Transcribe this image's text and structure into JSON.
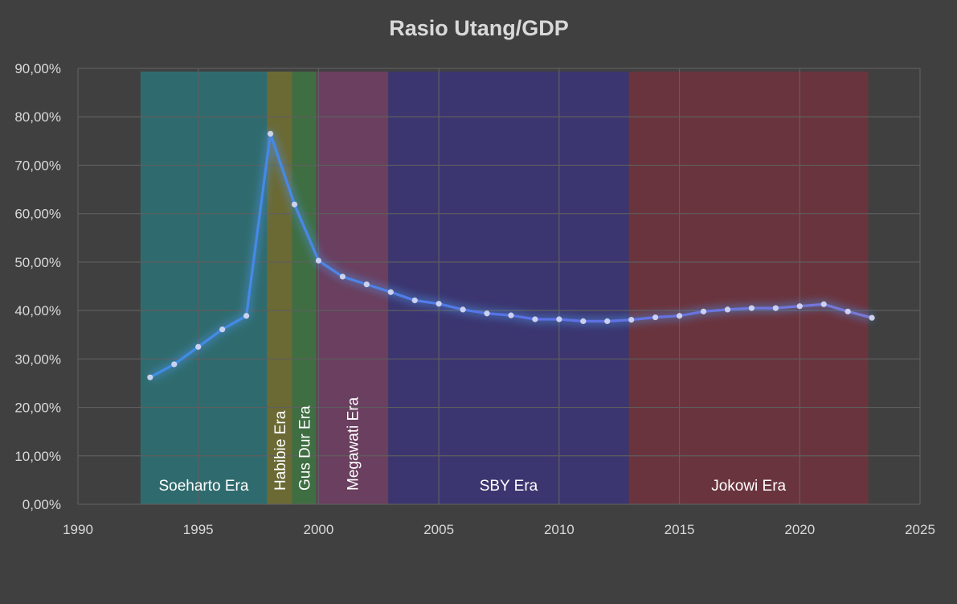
{
  "chart_data": {
    "type": "line",
    "title": "Rasio Utang/GDP",
    "xlabel": "",
    "ylabel": "",
    "xlim": [
      1990,
      2025
    ],
    "ylim": [
      0,
      90
    ],
    "x_ticks": [
      1990,
      1995,
      2000,
      2005,
      2010,
      2015,
      2020,
      2025
    ],
    "y_ticks": [
      "0,00%",
      "10,00%",
      "20,00%",
      "30,00%",
      "40,00%",
      "50,00%",
      "60,00%",
      "70,00%",
      "80,00%",
      "90,00%"
    ],
    "grid": true,
    "legend": "none",
    "series": [
      {
        "color": "#4a90e2",
        "x": [
          1993,
          1994,
          1995,
          1996,
          1997,
          1998,
          1999,
          2000,
          2001,
          2002,
          2003,
          2004,
          2005,
          2006,
          2007,
          2008,
          2009,
          2010,
          2011,
          2012,
          2013,
          2014,
          2015,
          2016,
          2017,
          2018,
          2019,
          2020,
          2021,
          2022,
          2023
        ],
        "values": [
          26.2,
          28.9,
          32.5,
          36.1,
          38.9,
          76.5,
          61.9,
          50.3,
          47.0,
          45.4,
          43.8,
          42.1,
          41.4,
          40.2,
          39.4,
          39.0,
          38.2,
          38.2,
          37.8,
          37.8,
          38.1,
          38.6,
          38.9,
          39.8,
          40.2,
          40.5,
          40.5,
          40.9,
          41.3,
          39.8,
          38.5
        ]
      }
    ],
    "eras": [
      {
        "label": "Soeharto Era",
        "start": 1992.6,
        "end": 1997.85,
        "color": "#2f6b6e",
        "orientation": "horizontal"
      },
      {
        "label": "Habibie Era",
        "start": 1997.85,
        "end": 1998.9,
        "color": "#6b6a35",
        "orientation": "vertical"
      },
      {
        "label": "Gus Dur Era",
        "start": 1998.9,
        "end": 1999.9,
        "color": "#3f6e42",
        "orientation": "vertical"
      },
      {
        "label": "Megawati Era",
        "start": 1999.9,
        "end": 2002.9,
        "color": "#6a3f5f",
        "orientation": "vertical"
      },
      {
        "label": "SBY Era",
        "start": 2002.9,
        "end": 2012.9,
        "color": "#3b3670",
        "orientation": "horizontal"
      },
      {
        "label": "Jokowi Era",
        "start": 2012.9,
        "end": 2022.85,
        "color": "#6a343e",
        "orientation": "horizontal"
      }
    ]
  }
}
